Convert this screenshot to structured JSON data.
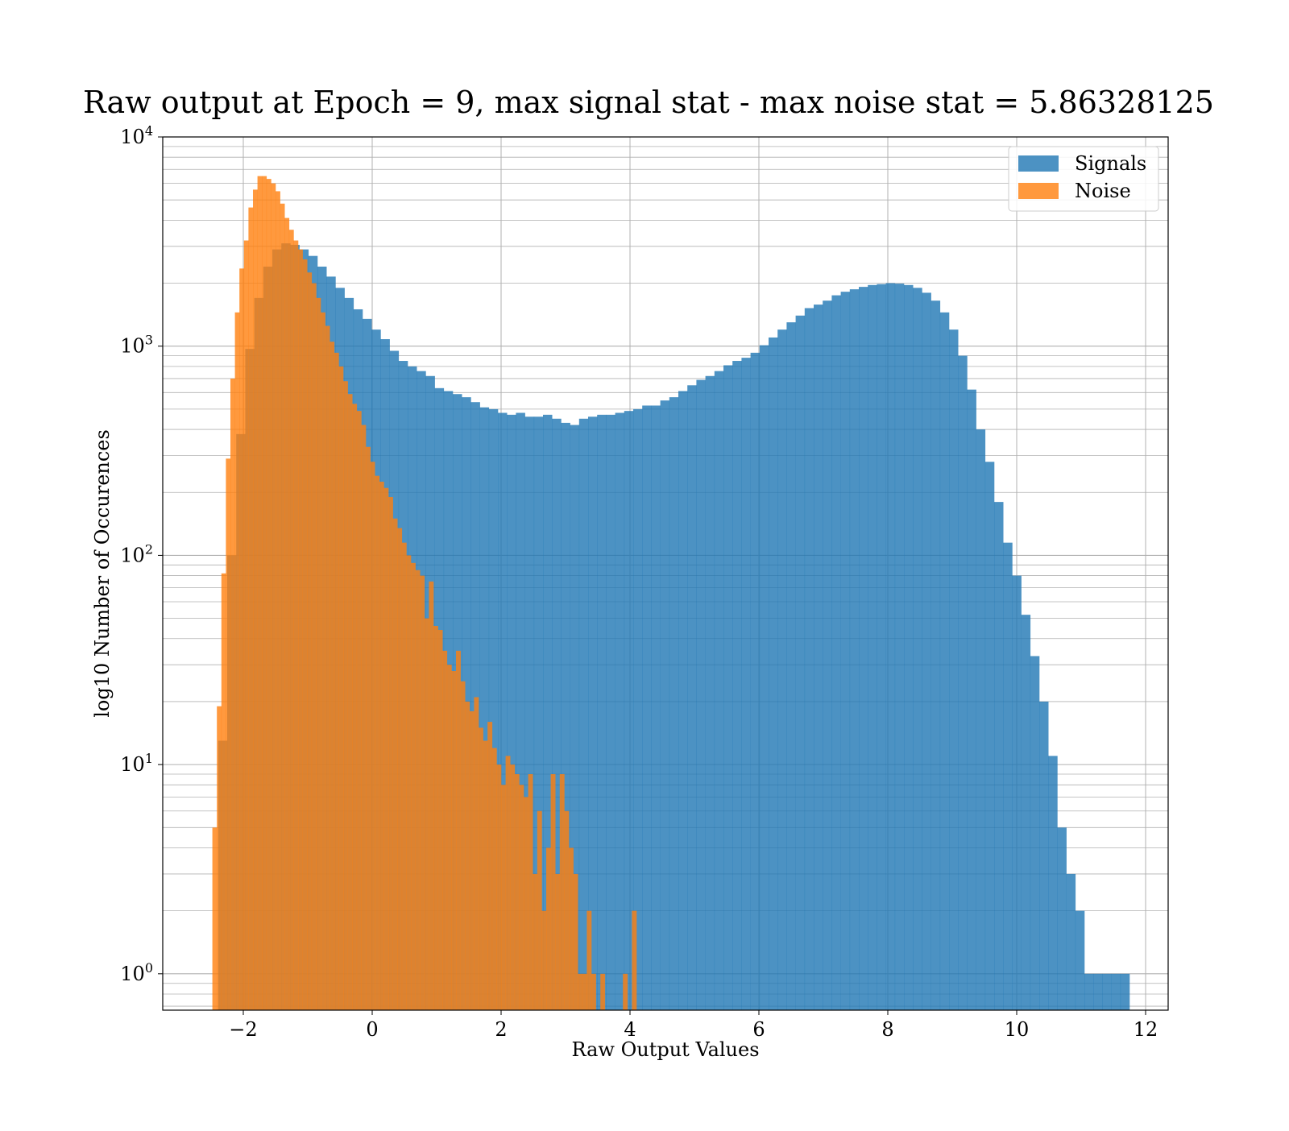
{
  "chart_data": {
    "type": "bar",
    "title": "Raw output at Epoch = 9, max signal stat - max noise stat = 5.86328125",
    "xlabel": "Raw Output Values",
    "ylabel": "log10 Number of Occurences",
    "xlim": [
      -3.25,
      12.35
    ],
    "ylim": [
      0.67,
      10000
    ],
    "yscale": "log",
    "grid": true,
    "legend": "top-right",
    "x_ticks": [
      -2,
      0,
      2,
      4,
      6,
      8,
      10,
      12
    ],
    "x_tick_labels": [
      "−2",
      "0",
      "2",
      "4",
      "6",
      "8",
      "10",
      "12"
    ],
    "y_ticks": [
      1,
      10,
      100,
      1000,
      10000
    ],
    "y_tick_labels": [
      {
        "base": "10",
        "exp": "0"
      },
      {
        "base": "10",
        "exp": "1"
      },
      {
        "base": "10",
        "exp": "2"
      },
      {
        "base": "10",
        "exp": "3"
      },
      {
        "base": "10",
        "exp": "4"
      }
    ],
    "series": [
      {
        "name": "Signals",
        "color": "#1f77b4",
        "opacity": 0.8,
        "bin_edges": [
          -2.39,
          -2.25,
          -2.11,
          -1.97,
          -1.83,
          -1.69,
          -1.55,
          -1.41,
          -1.27,
          -1.13,
          -0.99,
          -0.85,
          -0.71,
          -0.57,
          -0.43,
          -0.29,
          -0.15,
          -0.01,
          0.13,
          0.27,
          0.41,
          0.55,
          0.69,
          0.83,
          0.97,
          1.11,
          1.25,
          1.39,
          1.53,
          1.67,
          1.81,
          1.95,
          2.09,
          2.23,
          2.37,
          2.51,
          2.65,
          2.79,
          2.93,
          3.07,
          3.21,
          3.35,
          3.49,
          3.63,
          3.77,
          3.91,
          4.05,
          4.19,
          4.33,
          4.47,
          4.61,
          4.75,
          4.89,
          5.03,
          5.17,
          5.31,
          5.45,
          5.59,
          5.73,
          5.87,
          6.01,
          6.15,
          6.29,
          6.43,
          6.57,
          6.71,
          6.85,
          6.99,
          7.13,
          7.27,
          7.41,
          7.55,
          7.69,
          7.83,
          7.97,
          8.11,
          8.25,
          8.39,
          8.53,
          8.67,
          8.81,
          8.95,
          9.09,
          9.23,
          9.37,
          9.51,
          9.65,
          9.79,
          9.93,
          10.07,
          10.21,
          10.35,
          10.49,
          10.63,
          10.77,
          10.91,
          11.05,
          11.19,
          11.33,
          11.47,
          11.61,
          11.75
        ],
        "values": [
          13,
          100,
          380,
          970,
          1700,
          2400,
          2900,
          3100,
          3050,
          2900,
          2700,
          2400,
          2150,
          1900,
          1700,
          1500,
          1350,
          1200,
          1080,
          950,
          850,
          800,
          760,
          720,
          630,
          610,
          590,
          570,
          540,
          510,
          500,
          480,
          470,
          480,
          460,
          460,
          470,
          450,
          430,
          420,
          450,
          460,
          470,
          470,
          480,
          490,
          500,
          520,
          520,
          550,
          570,
          610,
          650,
          690,
          720,
          760,
          810,
          850,
          880,
          930,
          1010,
          1100,
          1200,
          1300,
          1400,
          1520,
          1580,
          1650,
          1750,
          1820,
          1870,
          1920,
          1960,
          1980,
          2000,
          1990,
          1960,
          1900,
          1800,
          1650,
          1450,
          1200,
          900,
          620,
          400,
          280,
          180,
          115,
          80,
          52,
          33,
          20,
          11,
          5,
          3,
          2,
          1,
          1,
          1,
          1,
          1
        ]
      },
      {
        "name": "Noise",
        "color": "#ff7f0e",
        "opacity": 0.8,
        "bin_edges": [
          -2.48,
          -2.41,
          -2.34,
          -2.27,
          -2.2,
          -2.13,
          -2.06,
          -1.99,
          -1.92,
          -1.85,
          -1.78,
          -1.71,
          -1.64,
          -1.57,
          -1.5,
          -1.43,
          -1.36,
          -1.29,
          -1.22,
          -1.15,
          -1.08,
          -1.01,
          -0.94,
          -0.87,
          -0.8,
          -0.73,
          -0.66,
          -0.59,
          -0.52,
          -0.45,
          -0.38,
          -0.31,
          -0.24,
          -0.17,
          -0.1,
          -0.03,
          0.04,
          0.11,
          0.18,
          0.25,
          0.32,
          0.39,
          0.46,
          0.53,
          0.6,
          0.67,
          0.74,
          0.81,
          0.88,
          0.95,
          1.02,
          1.09,
          1.16,
          1.23,
          1.3,
          1.37,
          1.44,
          1.51,
          1.58,
          1.65,
          1.72,
          1.79,
          1.86,
          1.93,
          2,
          2.07,
          2.14,
          2.21,
          2.28,
          2.35,
          2.42,
          2.49,
          2.56,
          2.63,
          2.7,
          2.77,
          2.84,
          2.91,
          2.98,
          3.05,
          3.12,
          3.19,
          3.26,
          3.33,
          3.4,
          3.47,
          3.54,
          3.61,
          3.68,
          3.75,
          3.82,
          3.89,
          3.96,
          4.03,
          4.1,
          4.17,
          4.24,
          4.31,
          4.38,
          4.45,
          4.52,
          4.59,
          4.66,
          4.73,
          4.8,
          4.87,
          4.94,
          5.01,
          5.08,
          5.15,
          5.22,
          5.29,
          5.36,
          5.43,
          5.5,
          5.57,
          5.64,
          5.71,
          5.78,
          5.85
        ],
        "values": [
          5,
          19,
          82,
          290,
          700,
          1450,
          2350,
          3200,
          4600,
          5600,
          6500,
          6500,
          6300,
          6000,
          5500,
          4800,
          4100,
          3600,
          3200,
          2900,
          2600,
          2250,
          2000,
          1700,
          1450,
          1250,
          1050,
          930,
          800,
          680,
          590,
          530,
          490,
          420,
          330,
          280,
          240,
          225,
          210,
          190,
          150,
          135,
          115,
          100,
          92,
          85,
          80,
          50,
          75,
          46,
          44,
          35,
          30,
          28,
          35,
          25,
          20,
          18,
          21,
          15,
          13,
          16,
          12,
          10,
          8,
          11,
          10,
          9,
          8,
          7,
          9,
          3,
          6,
          2,
          4,
          9,
          3,
          9,
          6,
          4,
          3,
          1,
          1,
          2,
          1,
          0,
          1,
          0,
          0,
          0,
          0,
          1,
          0,
          2,
          0,
          0,
          0,
          0,
          0,
          0,
          0,
          0,
          0,
          0,
          0,
          0,
          0,
          0,
          0,
          0,
          0,
          0,
          0,
          0,
          0,
          0,
          0,
          0,
          0
        ]
      }
    ]
  }
}
